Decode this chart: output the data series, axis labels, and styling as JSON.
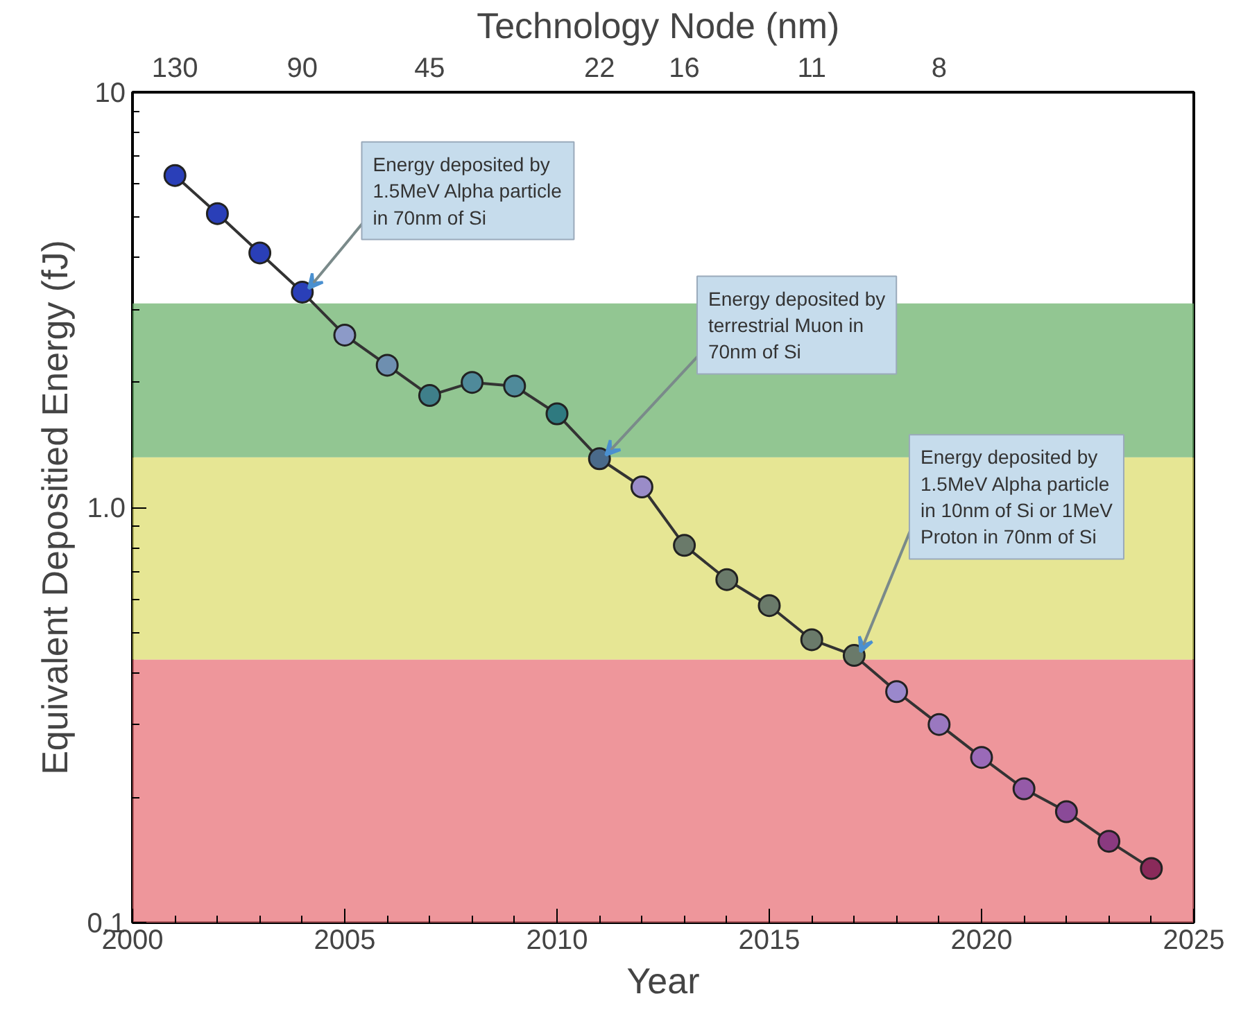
{
  "chart_data": {
    "type": "line",
    "xlabel": "Year",
    "ylabel": "Equivalent Depositied Energy (fJ)",
    "x2label": "Technology Node  (nm)",
    "x": [
      2001,
      2002,
      2003,
      2004,
      2005,
      2006,
      2007,
      2008,
      2009,
      2010,
      2011,
      2012,
      2013,
      2014,
      2015,
      2016,
      2017,
      2018,
      2019,
      2020,
      2021,
      2022,
      2023,
      2024
    ],
    "series": [
      {
        "color": "#333333",
        "values": [
          6.3,
          5.1,
          4.1,
          3.3,
          2.6,
          2.2,
          1.86,
          2.0,
          1.96,
          1.68,
          1.31,
          1.12,
          0.81,
          0.67,
          0.58,
          0.48,
          0.44,
          0.36,
          0.3,
          0.25,
          0.21,
          0.185,
          0.157,
          0.135
        ],
        "colors": [
          "#2a3fb8",
          "#2a3fb8",
          "#2a3fb8",
          "#2a3fb8",
          "#8c9ac8",
          "#6e8fb0",
          "#3f7f8a",
          "#4f8a9a",
          "#4f8a9a",
          "#2f7a80",
          "#4a6a8a",
          "#9a8cc8",
          "#6a7a6a",
          "#6a7a6a",
          "#6a7a6a",
          "#6a7a6a",
          "#6a7a6a",
          "#9a88cc",
          "#9a78c0",
          "#9a6ab8",
          "#955aa8",
          "#8a4a98",
          "#8a3a80",
          "#8a2a5a"
        ]
      }
    ],
    "marker": "circle",
    "line_style": "solid",
    "log": "y",
    "grid": false,
    "xlim": [
      2000,
      2025
    ],
    "xticks": [
      2000,
      2005,
      2010,
      2015,
      2020,
      2025
    ],
    "ylim": [
      0.1,
      10
    ],
    "yticks": [
      {
        "value": 0.1,
        "label": "0.1"
      },
      {
        "value": 1,
        "label": "1.0"
      },
      {
        "value": 10,
        "label": "10"
      }
    ],
    "bands": [
      {
        "axis": "y",
        "from": 0.1,
        "to": 0.43,
        "color": "#e8737a"
      },
      {
        "axis": "y",
        "from": 0.43,
        "to": 1.32,
        "color": "#dede70"
      },
      {
        "axis": "y",
        "from": 1.32,
        "to": 3.1,
        "color": "#6db36d"
      }
    ],
    "annotations": [
      "130",
      "90",
      "45",
      "22",
      "16",
      "11",
      "8",
      {
        "text": "Energy deposited by\n1.5MeV Alpha particle\nin 70nm of Si",
        "x": 2004,
        "y": 3.3
      },
      {
        "text": "Energy deposited by\nterrestrial Muon in\n70nm of Si",
        "x": 2011,
        "y": 1.31
      },
      {
        "text": "Energy deposited by\n1.5MeV Alpha particle\nin 10nm of Si or 1MeV\nProton in 70nm of Si",
        "x": 2017,
        "y": 0.44
      }
    ]
  }
}
